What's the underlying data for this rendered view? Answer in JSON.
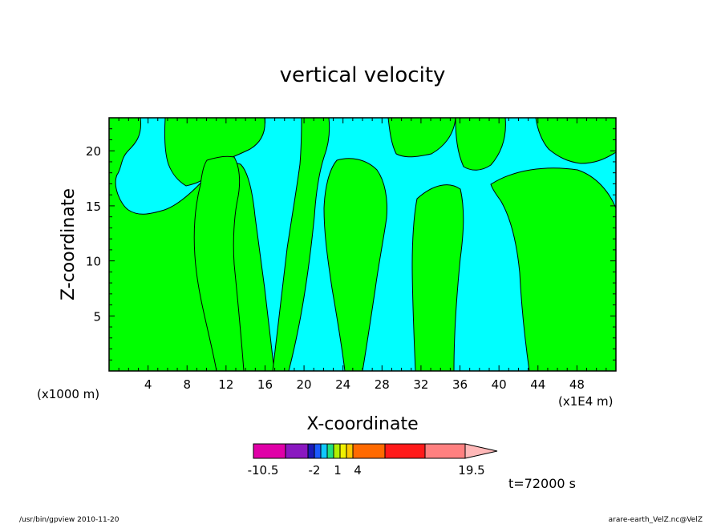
{
  "chart_data": {
    "type": "heatmap",
    "title": "vertical velocity",
    "xlabel": "X-coordinate",
    "ylabel": "Z-coordinate",
    "x_scale_left": "(x1000 m)",
    "x_scale_right": "(x1E4 m)",
    "xlim": [
      0,
      52
    ],
    "ylim": [
      0,
      23
    ],
    "xticks": [
      4,
      8,
      12,
      16,
      20,
      24,
      28,
      32,
      36,
      40,
      44,
      48
    ],
    "yticks": [
      5,
      10,
      15,
      20
    ],
    "colorbar": {
      "colors": [
        "#e000a8",
        "#8a18c0",
        "#1a1ab8",
        "#1a5aff",
        "#10c8ff",
        "#20e080",
        "#b0f000",
        "#f0f000",
        "#ffc800",
        "#ff6a00",
        "#ff1a1a",
        "#ff8080",
        "#ffb8b8"
      ],
      "labels": [
        {
          "text": "-10.5",
          "value": -10.5
        },
        {
          "text": "-2",
          "value": -2
        },
        {
          "text": "1",
          "value": 1
        },
        {
          "text": "4",
          "value": 4
        },
        {
          "text": "19.5",
          "value": 19.5
        }
      ]
    },
    "dominant_fill": {
      "negative": "#00ffff",
      "positive": "#00ff00"
    },
    "time_label": "t=72000 s"
  },
  "footer": {
    "left": "/usr/bin/gpview  2010-11-20",
    "right": "arare-earth_VelZ.nc@VelZ"
  }
}
